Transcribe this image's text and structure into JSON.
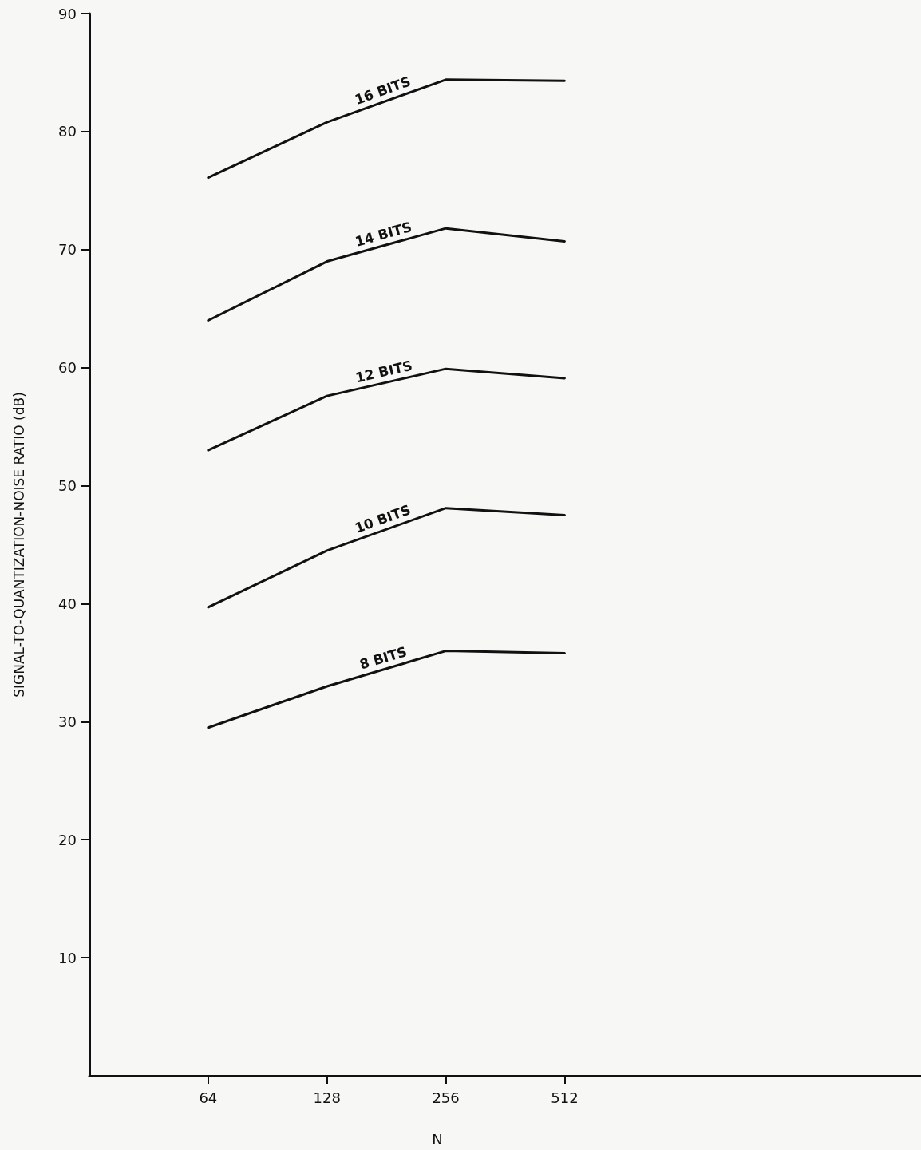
{
  "chart_data": {
    "type": "line",
    "xlabel": "N",
    "ylabel": "SIGNAL-TO-QUANTIZATION-NOISE RATIO (dB)",
    "x": [
      64,
      128,
      256,
      512
    ],
    "log": "x",
    "xlim": [
      32,
      4096
    ],
    "xticks": [
      64,
      128,
      256,
      512
    ],
    "ylim": [
      0,
      90
    ],
    "yticks": [
      10,
      20,
      30,
      40,
      50,
      60,
      70,
      80,
      90
    ],
    "marker": "none",
    "line_style": "solid",
    "series": [
      {
        "name": "16 BITS",
        "color": "#111111",
        "values": [
          76.1,
          80.8,
          84.4,
          84.3
        ]
      },
      {
        "name": "14 BITS",
        "color": "#111111",
        "values": [
          64.0,
          69.0,
          71.8,
          70.7
        ]
      },
      {
        "name": "12 BITS",
        "color": "#111111",
        "values": [
          53.0,
          57.6,
          59.9,
          59.1
        ]
      },
      {
        "name": "10 BITS",
        "color": "#111111",
        "values": [
          39.7,
          44.5,
          48.1,
          47.5
        ]
      },
      {
        "name": "8 BITS",
        "color": "#111111",
        "values": [
          29.5,
          33.0,
          36.0,
          35.8
        ]
      }
    ]
  }
}
